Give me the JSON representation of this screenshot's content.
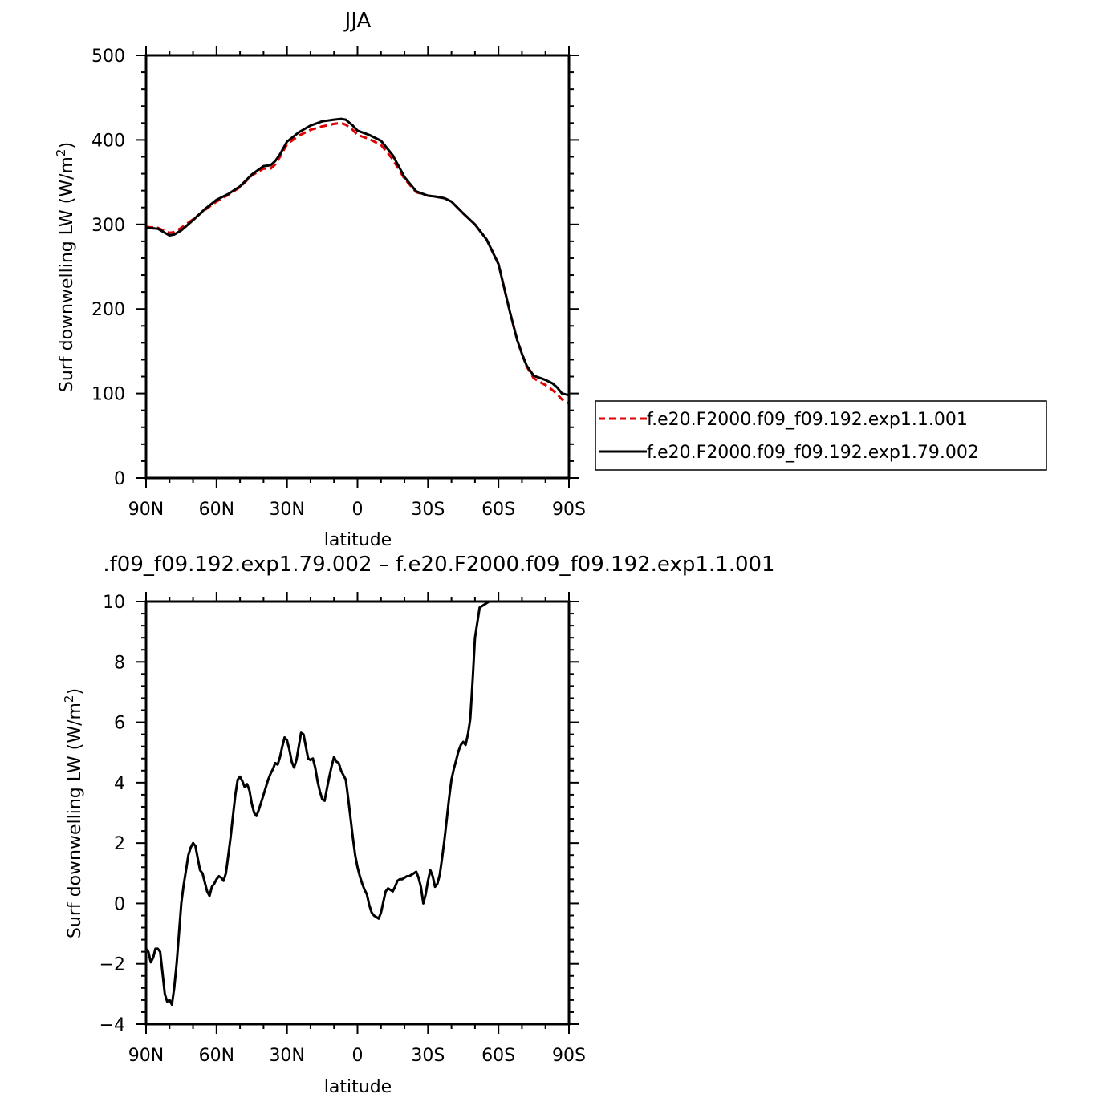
{
  "chart_data": [
    {
      "type": "line",
      "title": "JJA",
      "xlabel": "latitude",
      "ylabel_main": "Surf downwelling LW (W/m",
      "ylabel_sup": "2",
      "ylabel_close": ")",
      "xlim": [
        -90,
        90
      ],
      "ylim": [
        0,
        500
      ],
      "xticks": [
        -90,
        -60,
        -30,
        0,
        30,
        60,
        90
      ],
      "xtick_labels": [
        "90N",
        "60N",
        "30N",
        "0",
        "30S",
        "60S",
        "90S"
      ],
      "yticks": [
        0,
        100,
        200,
        300,
        400,
        500
      ],
      "ytick_labels": [
        "0",
        "100",
        "200",
        "300",
        "400",
        "500"
      ],
      "legend": "right",
      "series": [
        {
          "name": "f.e20.F2000.f09_f09.192.exp1.1.001",
          "color": "#e00000",
          "style": "dashed",
          "x": [
            -90,
            -85,
            -82,
            -80,
            -78,
            -75,
            -70,
            -65,
            -60,
            -55,
            -50,
            -45,
            -40,
            -37,
            -35,
            -33,
            -30,
            -25,
            -20,
            -15,
            -10,
            -7,
            -5,
            -2,
            0,
            5,
            10,
            15,
            20,
            25,
            30,
            33,
            37,
            40,
            45,
            50,
            55,
            60,
            62,
            65,
            68,
            70,
            72,
            75,
            78,
            80,
            83,
            85,
            87,
            90
          ],
          "y": [
            297,
            296,
            292,
            290,
            291,
            296,
            306,
            317,
            327,
            335,
            344,
            358,
            366,
            366,
            371,
            380,
            395,
            405,
            412,
            416,
            419,
            420,
            418,
            412,
            406,
            401,
            394,
            377,
            354,
            338,
            334,
            333,
            331,
            327,
            313,
            300,
            282,
            253,
            230,
            195,
            163,
            147,
            132,
            118,
            113,
            110,
            104,
            99,
            93,
            88
          ]
        },
        {
          "name": "f.e20.F2000.f09_f09.192.exp1.79.002",
          "color": "#000000",
          "style": "solid",
          "x": [
            -90,
            -85,
            -82,
            -80,
            -78,
            -75,
            -70,
            -65,
            -60,
            -55,
            -50,
            -45,
            -40,
            -37,
            -35,
            -33,
            -30,
            -25,
            -20,
            -15,
            -10,
            -7,
            -5,
            -2,
            0,
            5,
            10,
            15,
            20,
            25,
            30,
            33,
            37,
            40,
            45,
            50,
            55,
            60,
            62,
            65,
            68,
            70,
            72,
            75,
            78,
            80,
            83,
            85,
            87,
            90
          ],
          "y": [
            296,
            295,
            290,
            287,
            288,
            293,
            305,
            318,
            329,
            336,
            345,
            359,
            369,
            370,
            375,
            383,
            398,
            409,
            417,
            422,
            424,
            425,
            424,
            417,
            411,
            406,
            399,
            382,
            356,
            339,
            334,
            333,
            331,
            327,
            313,
            300,
            282,
            253,
            230,
            195,
            163,
            147,
            133,
            121,
            118,
            116,
            112,
            107,
            100,
            98
          ]
        }
      ]
    },
    {
      "type": "line",
      "title": ".f09_f09.192.exp1.79.002 – f.e20.F2000.f09_f09.192.exp1.1.001",
      "xlabel": "latitude",
      "ylabel_main": "Surf downwelling LW (W/m",
      "ylabel_sup": "2",
      "ylabel_close": ")",
      "xlim": [
        -90,
        90
      ],
      "ylim": [
        -4,
        10
      ],
      "xticks": [
        -90,
        -60,
        -30,
        0,
        30,
        60,
        90
      ],
      "xtick_labels": [
        "90N",
        "60N",
        "30N",
        "0",
        "30S",
        "60S",
        "90S"
      ],
      "yticks": [
        -4,
        -2,
        0,
        2,
        4,
        6,
        8,
        10
      ],
      "ytick_labels": [
        "−4",
        "−2",
        "0",
        "2",
        "4",
        "6",
        "8",
        "10"
      ],
      "series": [
        {
          "color": "#000000",
          "style": "solid",
          "x": [
            -90,
            -89,
            -88,
            -87,
            -86,
            -85,
            -84,
            -83,
            -82,
            -81,
            -80,
            -79,
            -78,
            -77,
            -76,
            -75,
            -74,
            -73,
            -72,
            -71,
            -70,
            -69,
            -68,
            -67,
            -66,
            -65,
            -64,
            -63,
            -62,
            -61,
            -60,
            -59,
            -58,
            -57,
            -56,
            -55,
            -54,
            -53,
            -52,
            -51,
            -50,
            -49,
            -48,
            -47,
            -46,
            -45,
            -44,
            -43,
            -42,
            -41,
            -40,
            -39,
            -38,
            -37,
            -36,
            -35,
            -34,
            -33,
            -32,
            -31,
            -30,
            -29,
            -28,
            -27,
            -26,
            -25,
            -24,
            -23,
            -22,
            -21,
            -20,
            -19,
            -18,
            -17,
            -16,
            -15,
            -14,
            -13,
            -12,
            -11,
            -10,
            -9,
            -8,
            -7,
            -6,
            -5,
            -4,
            -3,
            -2,
            -1,
            0,
            1,
            2,
            3,
            4,
            5,
            6,
            7,
            8,
            9,
            10,
            11,
            12,
            13,
            14,
            15,
            16,
            17,
            18,
            19,
            20,
            21,
            22,
            23,
            24,
            25,
            26,
            27,
            28,
            29,
            30,
            31,
            32,
            33,
            34,
            35,
            36,
            37,
            38,
            39,
            40,
            41,
            42,
            43,
            44,
            45,
            46,
            47,
            48,
            49,
            50,
            51,
            52,
            53,
            54,
            55,
            56,
            57,
            58,
            59,
            60,
            61,
            62,
            63,
            64,
            65,
            66,
            67,
            68,
            69,
            70,
            71,
            72,
            73,
            74,
            75,
            76,
            77,
            78,
            79,
            80,
            81,
            82,
            83,
            84,
            85,
            86,
            87,
            88,
            89,
            90
          ],
          "y": [
            -1.5,
            -1.6,
            -1.95,
            -1.8,
            -1.5,
            -1.5,
            -1.6,
            -2.3,
            -3.0,
            -3.25,
            -3.2,
            -3.35,
            -2.8,
            -2.0,
            -1.0,
            0.0,
            0.6,
            1.1,
            1.6,
            1.85,
            2.0,
            1.9,
            1.5,
            1.1,
            1.0,
            0.7,
            0.4,
            0.25,
            0.55,
            0.65,
            0.8,
            0.9,
            0.85,
            0.75,
            1.0,
            1.6,
            2.2,
            2.9,
            3.6,
            4.1,
            4.2,
            4.05,
            3.85,
            3.95,
            3.75,
            3.3,
            3.0,
            2.9,
            3.1,
            3.35,
            3.6,
            3.85,
            4.1,
            4.3,
            4.45,
            4.65,
            4.6,
            4.85,
            5.2,
            5.5,
            5.4,
            5.1,
            4.7,
            4.5,
            4.75,
            5.2,
            5.65,
            5.6,
            5.2,
            4.8,
            4.75,
            4.8,
            4.5,
            4.05,
            3.7,
            3.45,
            3.4,
            3.8,
            4.2,
            4.55,
            4.85,
            4.7,
            4.65,
            4.4,
            4.25,
            4.1,
            3.5,
            2.85,
            2.2,
            1.6,
            1.2,
            0.9,
            0.65,
            0.45,
            0.3,
            -0.05,
            -0.3,
            -0.4,
            -0.45,
            -0.5,
            -0.3,
            0.05,
            0.4,
            0.5,
            0.45,
            0.4,
            0.55,
            0.75,
            0.8,
            0.8,
            0.85,
            0.9,
            0.9,
            0.95,
            1.0,
            1.05,
            0.85,
            0.55,
            0.0,
            0.3,
            0.75,
            1.1,
            0.9,
            0.55,
            0.65,
            0.95,
            1.5,
            2.1,
            2.8,
            3.5,
            4.1,
            4.45,
            4.75,
            5.05,
            5.25,
            5.35,
            5.25,
            5.6,
            6.1,
            7.4,
            8.8,
            9.3,
            9.8,
            9.85,
            9.9,
            9.95,
            10.0,
            10.0,
            10.0,
            10.0,
            10.0,
            10.0,
            10.0,
            10.0,
            10.0,
            10.0,
            10.0,
            10.0,
            10.0,
            10.0,
            10.0,
            10.0,
            10.0,
            10.0,
            10.0,
            10.0,
            10.0,
            10.0,
            10.0,
            10.0,
            10.0,
            10.0,
            10.0,
            10.0,
            10.0,
            10.0,
            10.0,
            10.0,
            10.0,
            10.0,
            10.0
          ]
        }
      ]
    }
  ]
}
